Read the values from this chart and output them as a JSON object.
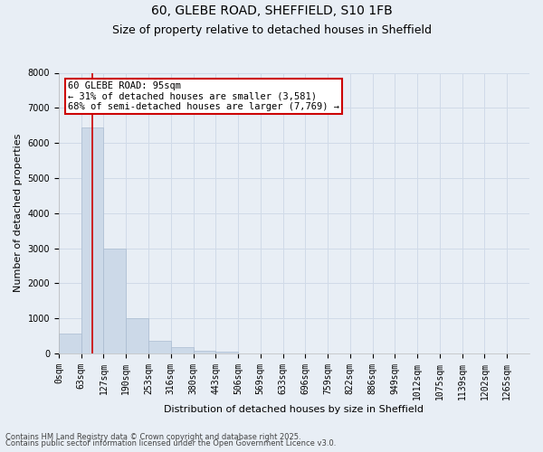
{
  "title_line1": "60, GLEBE ROAD, SHEFFIELD, S10 1FB",
  "title_line2": "Size of property relative to detached houses in Sheffield",
  "xlabel": "Distribution of detached houses by size in Sheffield",
  "ylabel": "Number of detached properties",
  "bin_labels": [
    "0sqm",
    "63sqm",
    "127sqm",
    "190sqm",
    "253sqm",
    "316sqm",
    "380sqm",
    "443sqm",
    "506sqm",
    "569sqm",
    "633sqm",
    "696sqm",
    "759sqm",
    "822sqm",
    "886sqm",
    "949sqm",
    "1012sqm",
    "1075sqm",
    "1139sqm",
    "1202sqm",
    "1265sqm"
  ],
  "bar_values": [
    580,
    6450,
    2980,
    1000,
    370,
    170,
    90,
    55,
    0,
    0,
    0,
    0,
    0,
    0,
    0,
    0,
    0,
    0,
    0,
    0
  ],
  "bar_color": "#ccd9e8",
  "bar_edge_color": "#aabbd0",
  "grid_color": "#d0dae8",
  "background_color": "#e8eef5",
  "vline_x": 1.5,
  "vline_color": "#cc0000",
  "annotation_text": "60 GLEBE ROAD: 95sqm\n← 31% of detached houses are smaller (3,581)\n68% of semi-detached houses are larger (7,769) →",
  "annotation_box_color": "#ffffff",
  "annotation_box_edge": "#cc0000",
  "ylim": [
    0,
    8000
  ],
  "yticks": [
    0,
    1000,
    2000,
    3000,
    4000,
    5000,
    6000,
    7000,
    8000
  ],
  "footer_line1": "Contains HM Land Registry data © Crown copyright and database right 2025.",
  "footer_line2": "Contains public sector information licensed under the Open Government Licence v3.0.",
  "title_fontsize": 10,
  "subtitle_fontsize": 9,
  "tick_fontsize": 7,
  "ylabel_fontsize": 8,
  "xlabel_fontsize": 8,
  "footer_fontsize": 6,
  "annotation_fontsize": 7.5
}
